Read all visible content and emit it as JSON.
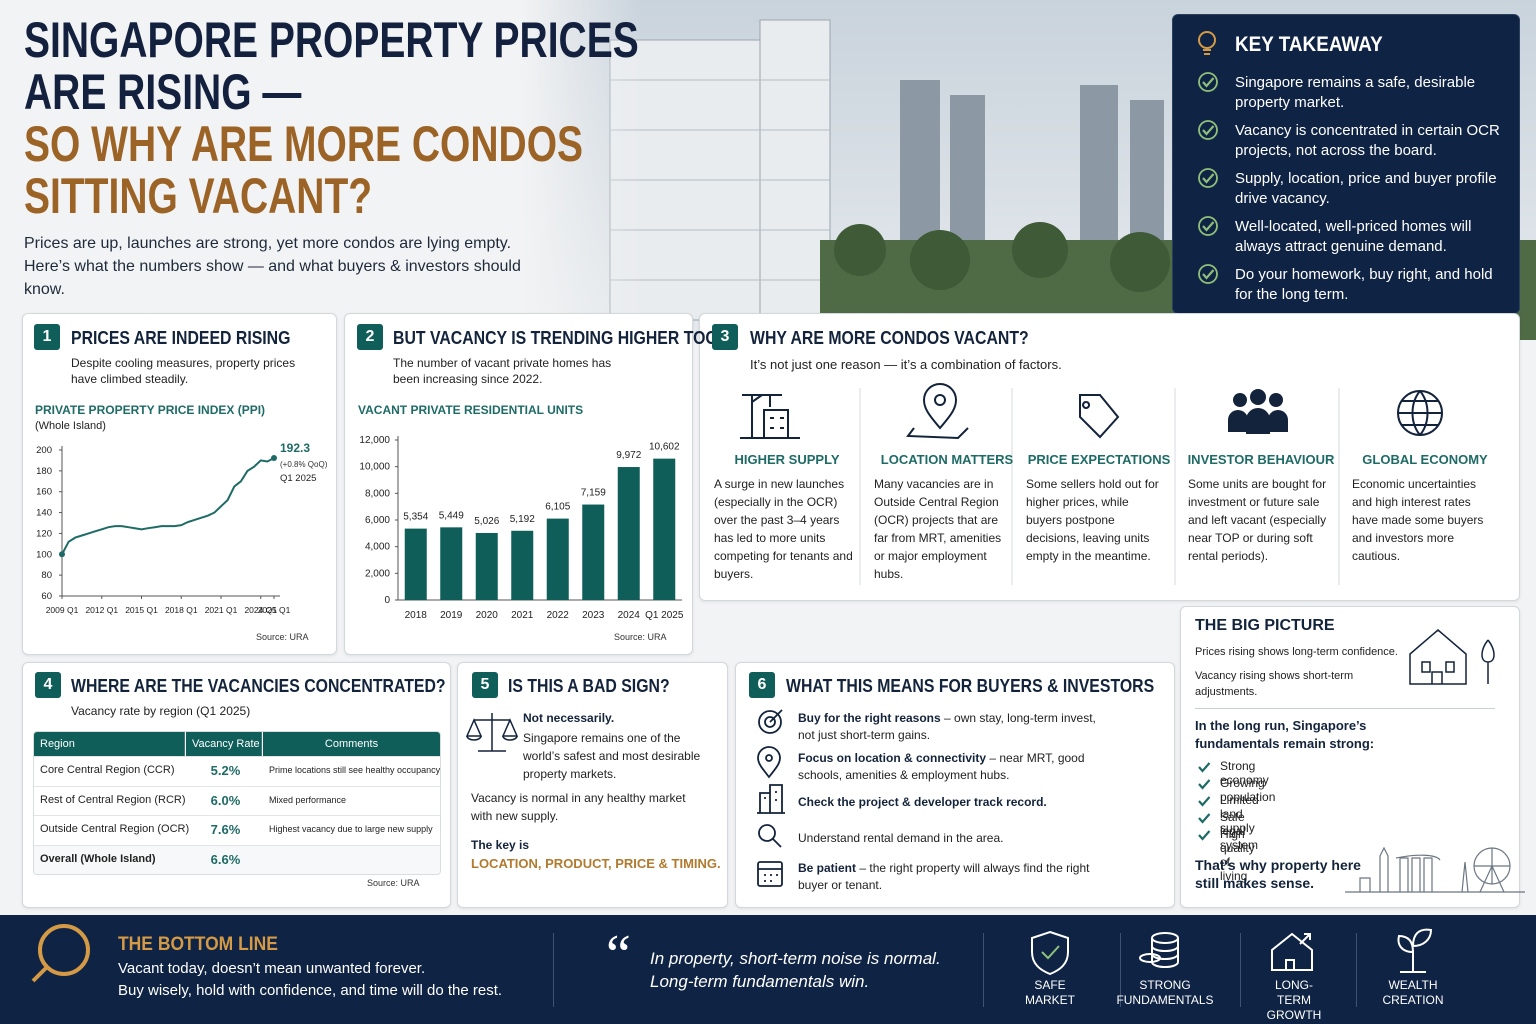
{
  "header": {
    "title_lines": [
      "SINGAPORE PROPERTY PRICES",
      "ARE RISING —",
      "SO WHY ARE MORE CONDOS",
      "SITTING VACANT?"
    ],
    "subtitle": "Prices are up, launches are strong, yet more condos are lying empty. Here’s what the numbers show — and what buyers & investors should know."
  },
  "takeaway": {
    "title": "KEY TAKEAWAY",
    "items": [
      "Singapore remains a safe, desirable property market.",
      "Vacancy is concentrated in certain OCR projects, not across the board.",
      "Supply, location, price and buyer profile drive vacancy.",
      "Well-located, well-priced homes will always attract genuine demand.",
      "Do your homework, buy right, and hold for the long term."
    ]
  },
  "section1": {
    "number": "1",
    "title": "PRICES ARE INDEED RISING",
    "text": "Despite cooling measures, property prices have climbed steadily.",
    "source": "Source: URA"
  },
  "section2": {
    "number": "2",
    "title": "BUT VACANCY IS TRENDING HIGHER TOO",
    "text": "The number of vacant private homes has been increasing since 2022.",
    "source": "Source: URA"
  },
  "section3": {
    "number": "3",
    "title": "WHY ARE MORE CONDOS VACANT?",
    "subtitle": "It’s not just one reason — it’s a combination of factors.",
    "factors": [
      {
        "title": "HIGHER SUPPLY",
        "text": "A surge in new launches (especially in the OCR) over the past 3–4 years has led to more units competing for tenants and buyers."
      },
      {
        "title": "LOCATION MATTERS",
        "text": "Many vacancies are in Outside Central Region (OCR) projects that are far from MRT, amenities or major employment hubs."
      },
      {
        "title": "PRICE EXPECTATIONS",
        "text": "Some sellers hold out for higher prices, while buyers postpone decisions, leaving units empty in the meantime."
      },
      {
        "title": "INVESTOR BEHAVIOUR",
        "text": "Some units are bought for investment or future sale and left vacant (especially near TOP or during soft rental periods)."
      },
      {
        "title": "GLOBAL ECONOMY",
        "text": "Economic uncertainties and high interest rates have made some buyers and investors more cautious."
      }
    ]
  },
  "big_picture": {
    "title": "THE BIG PICTURE",
    "lines": [
      "Prices rising shows long-term confidence.",
      "Vacancy rising shows short-term adjustments."
    ],
    "lead": "In the long run, Singapore’s fundamentals remain strong:",
    "items": [
      "Strong economy",
      "Growing population",
      "Limited land supply",
      "Safe legal system",
      "High quality of living"
    ],
    "closing": "That’s why property here still makes sense."
  },
  "section4": {
    "number": "4",
    "title": "WHERE ARE THE VACANCIES CONCENTRATED?",
    "subtitle": "Vacancy rate by region (Q1 2025)",
    "table": {
      "header": [
        "Region",
        "Vacancy Rate",
        "Comments"
      ],
      "rows": [
        [
          "Core Central Region (CCR)",
          "5.2%",
          "Prime locations still see healthy occupancy"
        ],
        [
          "Rest of Central Region (RCR)",
          "6.0%",
          "Mixed performance"
        ],
        [
          "Outside Central Region (OCR)",
          "7.6%",
          "Highest vacancy due to large new supply"
        ],
        [
          "Overall (Whole Island)",
          "6.6%"
        ]
      ]
    },
    "source": "Source: URA"
  },
  "section5": {
    "number": "5",
    "title": "IS THIS A BAD SIGN?",
    "lead": "Not necessarily.",
    "text": "Singapore remains one of the world’s safest and most desirable property markets.",
    "note": "Vacancy is normal in any healthy market with new supply.",
    "key_intro": "The key is",
    "key": "LOCATION, PRODUCT, PRICE & TIMING."
  },
  "section6": {
    "number": "6",
    "title": "WHAT THIS MEANS FOR BUYERS & INVESTORS",
    "items": [
      {
        "bold": "Buy for the right reasons",
        "text": " – own stay, long-term invest, not just short-term gains."
      },
      {
        "bold": "Focus on location & connectivity",
        "text": " – near MRT, good schools, amenities & employment hubs."
      },
      {
        "bold": "Check the project & developer track record."
      },
      {
        "text": "Understand rental demand in the area."
      },
      {
        "bold": "Be patient",
        "text": " – the right property will always find the right buyer or tenant."
      }
    ]
  },
  "footer": {
    "title": "THE BOTTOM LINE",
    "lines": [
      "Vacant today, doesn’t mean unwanted forever.",
      "Buy wisely, hold with confidence, and time will do the rest."
    ],
    "quote_mark": "“",
    "quote": [
      "In property, short-term noise is normal.",
      "Long-term fundamentals win."
    ],
    "badges": [
      "SAFE MARKET",
      "STRONG FUNDAMENTALS",
      "LONG-TERM GROWTH",
      "WEALTH CREATION"
    ]
  },
  "chart_data": [
    {
      "type": "line",
      "title": "PRIVATE PROPERTY PRICE INDEX (PPI)",
      "subtitle": "(Whole Island)",
      "annotation": "(+0.8% QoQ)",
      "annotation_period": "Q1 2025",
      "color": "#1e6b66",
      "x": [
        2009,
        2009.5,
        2010,
        2010.5,
        2011,
        2011.5,
        2012,
        2012.5,
        2013,
        2013.5,
        2014,
        2014.5,
        2015,
        2015.5,
        2016,
        2016.5,
        2017,
        2017.5,
        2018,
        2018.5,
        2019,
        2019.5,
        2020,
        2020.5,
        2021,
        2021.5,
        2022,
        2022.5,
        2023,
        2023.5,
        2024,
        2024.5,
        2025
      ],
      "values": [
        100,
        112,
        116,
        118,
        120,
        122,
        124,
        126,
        127,
        127,
        126,
        125,
        124,
        125,
        126,
        127,
        127,
        127,
        128,
        131,
        133,
        135,
        137,
        140,
        146,
        152,
        165,
        170,
        180,
        184,
        190,
        189,
        192.3
      ],
      "xlim": [
        2009,
        2025
      ],
      "xticks": [
        {
          "value": 2009,
          "label": "2009 Q1"
        },
        {
          "value": 2012,
          "label": "2012 Q1"
        },
        {
          "value": 2015,
          "label": "2015 Q1"
        },
        {
          "value": 2018,
          "label": "2018 Q1"
        },
        {
          "value": 2021,
          "label": "2021 Q1"
        },
        {
          "value": 2024,
          "label": "2024 Q1"
        },
        {
          "value": 2025,
          "label": "2025 Q1"
        }
      ],
      "ylim": [
        60,
        200
      ],
      "yticks": [
        60,
        80,
        100,
        120,
        140,
        160,
        180,
        200
      ],
      "grid": false
    },
    {
      "type": "bar",
      "title": "VACANT PRIVATE RESIDENTIAL UNITS",
      "color": "#0f5e5a",
      "categories": [
        "2018",
        "2019",
        "2020",
        "2021",
        "2022",
        "2023",
        "2024",
        "Q1 2025"
      ],
      "values": [
        5354,
        5449,
        5026,
        5192,
        6105,
        7159,
        9972,
        10602
      ],
      "value_labels": [
        "5,354",
        "5,449",
        "5,026",
        "5,192",
        "6,105",
        "7,159",
        "9,972",
        "10,602"
      ],
      "ylim": [
        0,
        12000
      ],
      "yticks": [
        0,
        {
          "value": 2000,
          "label": "2,000"
        },
        {
          "value": 4000,
          "label": "4,000"
        },
        {
          "value": 6000,
          "label": "6,000"
        },
        {
          "value": 8000,
          "label": "8,000"
        },
        {
          "value": 10000,
          "label": "10,000"
        },
        {
          "value": 12000,
          "label": "12,000"
        }
      ],
      "grid": false
    }
  ]
}
